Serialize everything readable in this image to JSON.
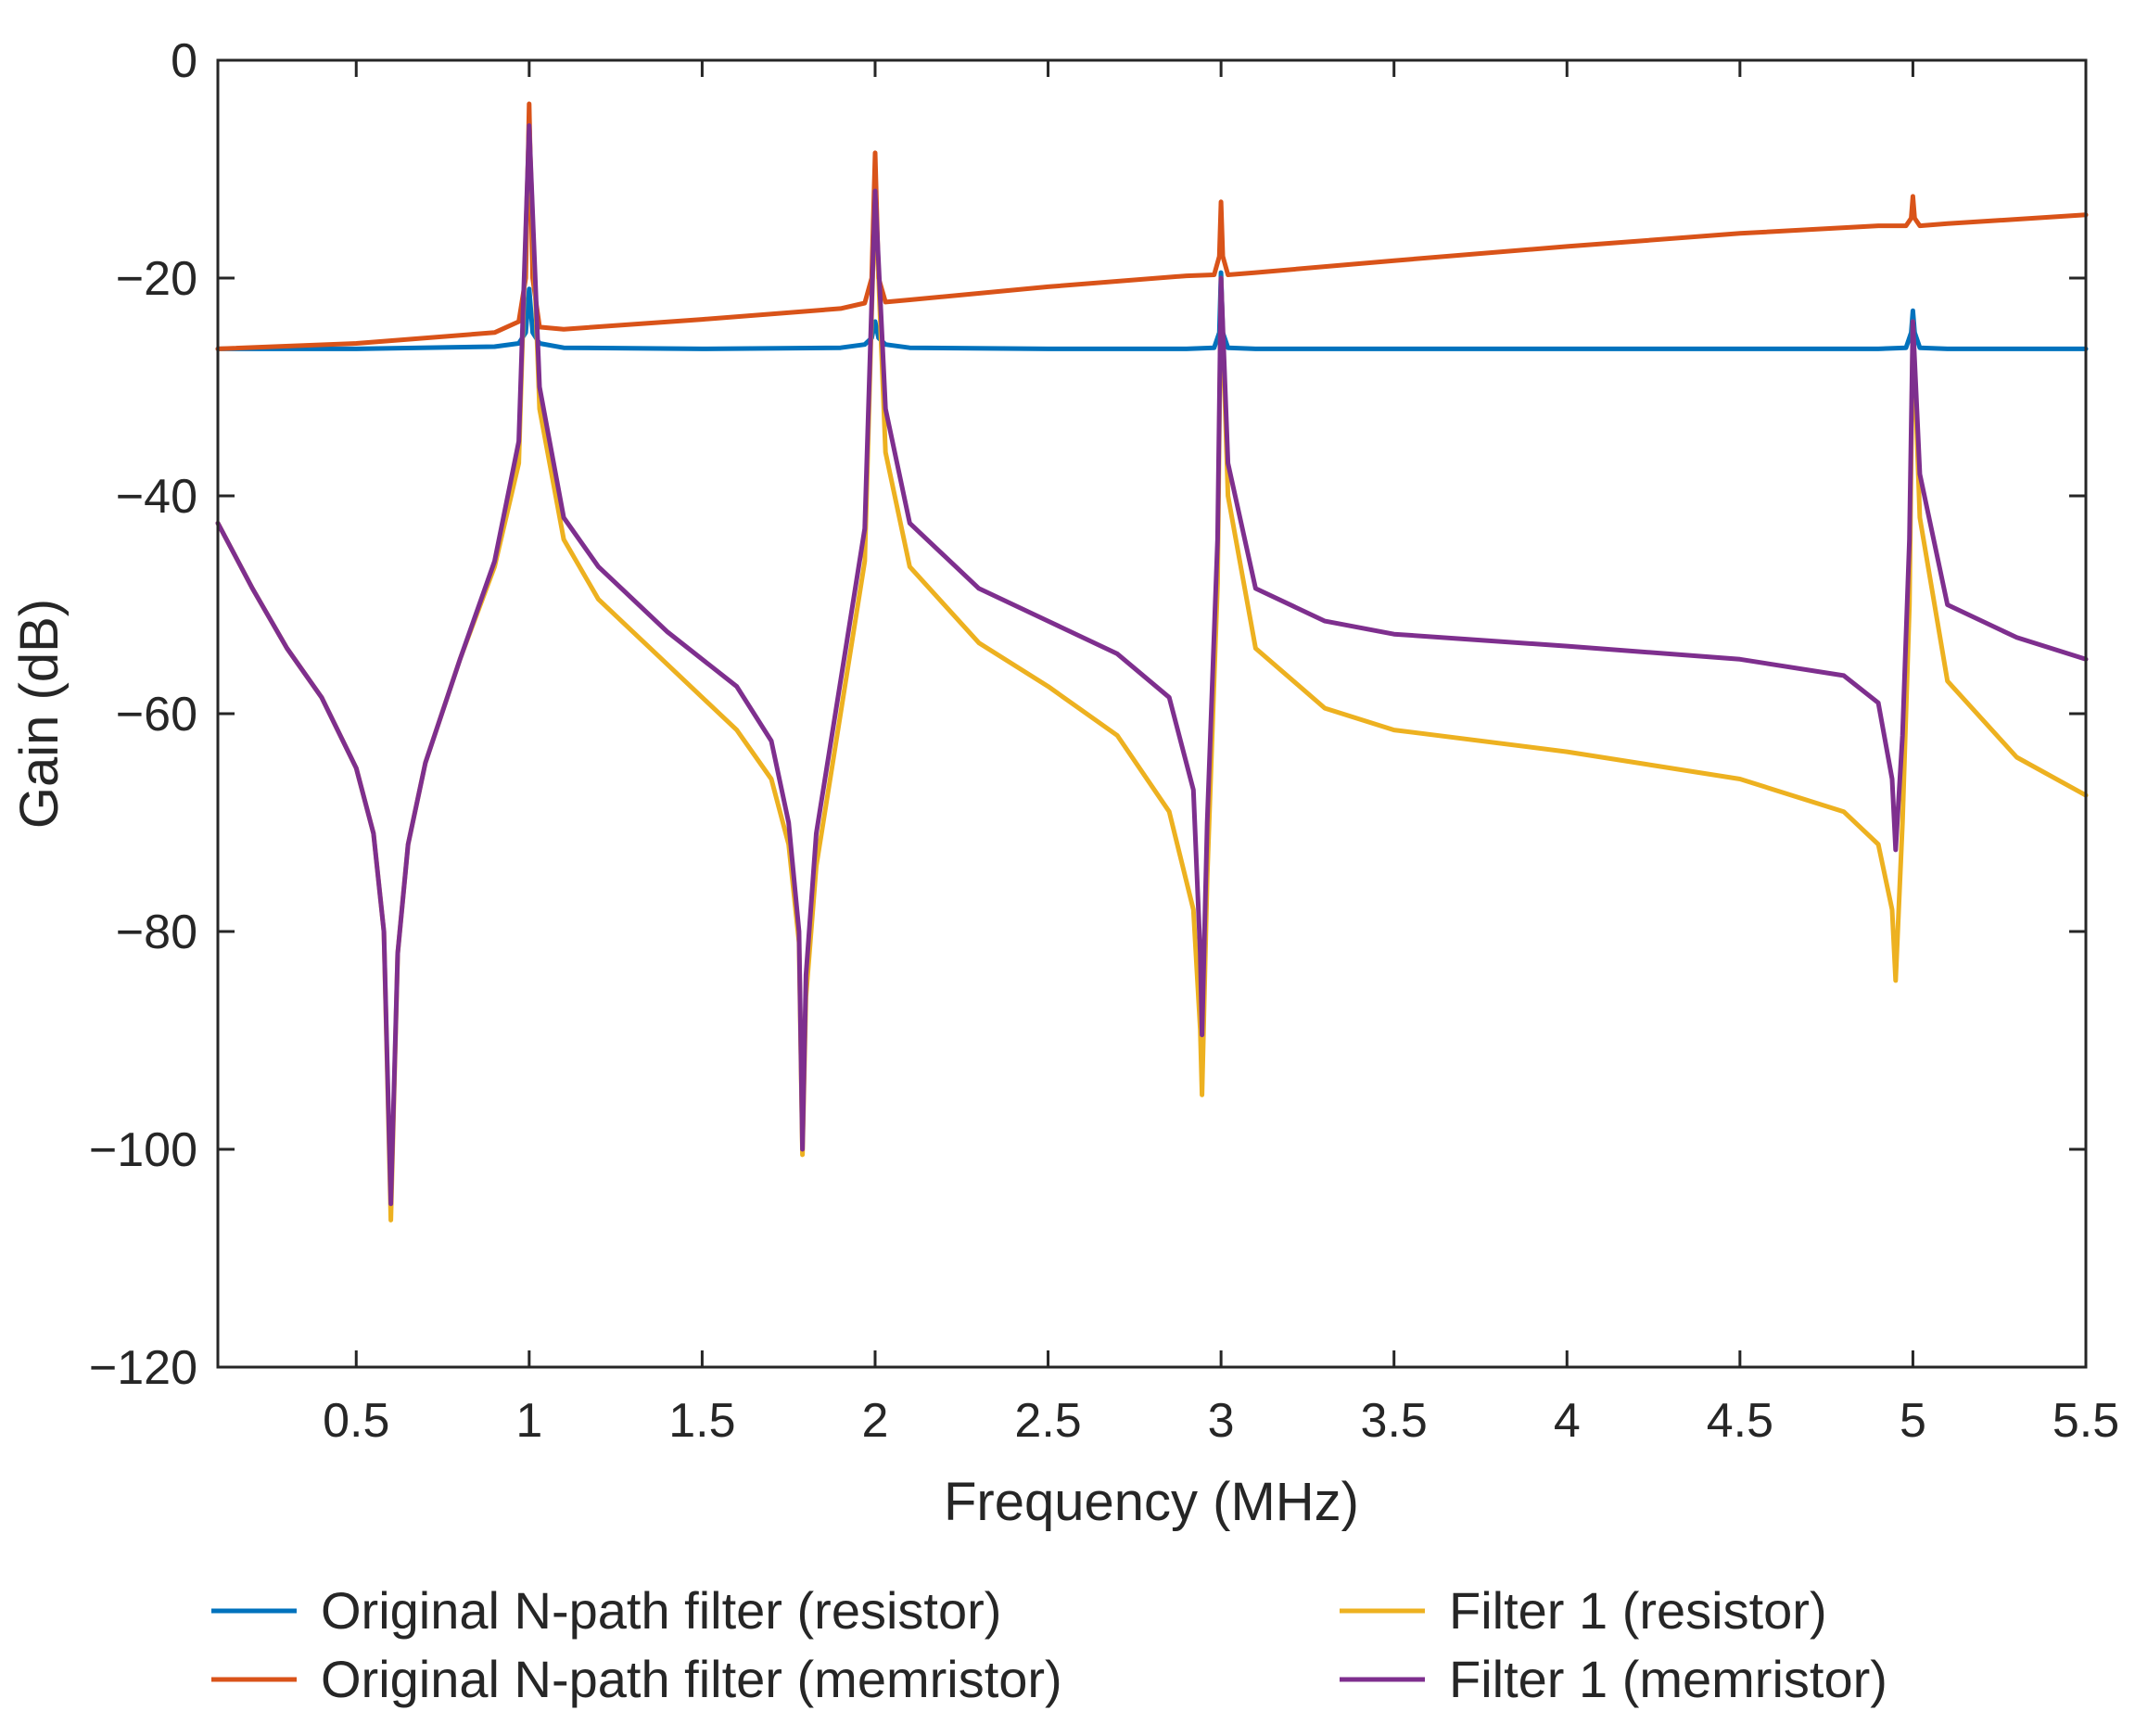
{
  "chart_data": {
    "type": "line",
    "title": "",
    "xlabel": "Frequency (MHz)",
    "ylabel": "Gain (dB)",
    "xlim": [
      0.1,
      5.5
    ],
    "ylim": [
      -120,
      0
    ],
    "xticks": [
      0.5,
      1,
      1.5,
      2,
      2.5,
      3,
      3.5,
      4,
      4.5,
      5,
      5.5
    ],
    "xtick_labels": [
      "0.5",
      "1",
      "1.5",
      "2",
      "2.5",
      "3",
      "3.5",
      "4",
      "4.5",
      "5",
      "5.5"
    ],
    "yticks": [
      0,
      -20,
      -40,
      -60,
      -80,
      -100,
      -120
    ],
    "ytick_labels": [
      "0",
      "−20",
      "−40",
      "−60",
      "−80",
      "−100",
      "−120"
    ],
    "grid": false,
    "legend_position": "bottom",
    "series": [
      {
        "name": "Original N-path filter (resistor)",
        "color": "#0072BD",
        "x": [
          0.1,
          0.5,
          0.9,
          0.97,
          0.99,
          1.0,
          1.01,
          1.03,
          1.1,
          1.5,
          1.9,
          1.97,
          1.99,
          2.0,
          2.01,
          2.03,
          2.1,
          2.5,
          2.9,
          2.98,
          2.995,
          3.0,
          3.005,
          3.02,
          3.1,
          3.5,
          4.0,
          4.5,
          4.9,
          4.98,
          4.995,
          5.0,
          5.005,
          5.02,
          5.1,
          5.5
        ],
        "values": [
          -26.5,
          -26.5,
          -26.3,
          -26.0,
          -25.0,
          -21.0,
          -25.0,
          -26.0,
          -26.4,
          -26.5,
          -26.4,
          -26.1,
          -25.5,
          -24.0,
          -25.5,
          -26.1,
          -26.4,
          -26.5,
          -26.5,
          -26.4,
          -25.0,
          -19.5,
          -25.0,
          -26.4,
          -26.5,
          -26.5,
          -26.5,
          -26.5,
          -26.5,
          -26.4,
          -25.0,
          -23.0,
          -25.0,
          -26.4,
          -26.5,
          -26.5
        ]
      },
      {
        "name": "Original N-path filter (memristor)",
        "color": "#D95319",
        "x": [
          0.1,
          0.5,
          0.9,
          0.97,
          0.99,
          1.0,
          1.01,
          1.03,
          1.1,
          1.5,
          1.9,
          1.97,
          1.99,
          2.0,
          2.01,
          2.03,
          2.1,
          2.5,
          2.9,
          2.98,
          2.995,
          3.0,
          3.005,
          3.02,
          3.1,
          3.5,
          4.0,
          4.5,
          4.9,
          4.98,
          4.995,
          5.0,
          5.005,
          5.02,
          5.1,
          5.5
        ],
        "values": [
          -26.5,
          -26.0,
          -25.0,
          -24.0,
          -20.0,
          -4.0,
          -20.0,
          -24.5,
          -24.7,
          -23.8,
          -22.8,
          -22.3,
          -20.0,
          -8.5,
          -20.0,
          -22.2,
          -22.0,
          -20.8,
          -19.8,
          -19.7,
          -18.0,
          -13.0,
          -18.0,
          -19.7,
          -19.5,
          -18.4,
          -17.1,
          -15.9,
          -15.2,
          -15.2,
          -14.5,
          -12.5,
          -14.5,
          -15.2,
          -15.0,
          -14.2
        ]
      },
      {
        "name": "Filter 1 (resistor)",
        "color": "#EDB120",
        "x": [
          0.1,
          0.2,
          0.3,
          0.4,
          0.5,
          0.55,
          0.58,
          0.6,
          0.62,
          0.65,
          0.7,
          0.8,
          0.9,
          0.97,
          1.0,
          1.03,
          1.1,
          1.2,
          1.4,
          1.6,
          1.7,
          1.75,
          1.78,
          1.79,
          1.8,
          1.83,
          1.9,
          1.97,
          2.0,
          2.03,
          2.1,
          2.3,
          2.5,
          2.7,
          2.85,
          2.92,
          2.94,
          2.945,
          2.96,
          2.99,
          3.0,
          3.02,
          3.1,
          3.3,
          3.5,
          4.0,
          4.5,
          4.8,
          4.9,
          4.94,
          4.95,
          4.97,
          4.99,
          5.0,
          5.02,
          5.1,
          5.3,
          5.5
        ],
        "values": [
          -42.5,
          -48.5,
          -54.0,
          -58.5,
          -65.0,
          -71.0,
          -80.0,
          -106.5,
          -82.0,
          -72.0,
          -64.5,
          -55.0,
          -46.5,
          -37.0,
          -6.0,
          -32.0,
          -44.0,
          -49.5,
          -55.5,
          -61.5,
          -66.0,
          -72.0,
          -81.0,
          -100.5,
          -86.0,
          -74.0,
          -60.0,
          -46.0,
          -12.0,
          -36.0,
          -46.5,
          -53.5,
          -57.5,
          -62.0,
          -69.0,
          -78.0,
          -89.0,
          -95.0,
          -75.0,
          -48.0,
          -20.0,
          -40.0,
          -54.0,
          -59.5,
          -61.5,
          -63.5,
          -66.0,
          -69.0,
          -72.0,
          -78.0,
          -84.5,
          -70.0,
          -50.0,
          -24.0,
          -42.0,
          -57.0,
          -64.0,
          -67.5
        ]
      },
      {
        "name": "Filter 1 (memristor)",
        "color": "#7E2F8E",
        "x": [
          0.1,
          0.2,
          0.3,
          0.4,
          0.5,
          0.55,
          0.58,
          0.6,
          0.62,
          0.65,
          0.7,
          0.8,
          0.9,
          0.97,
          1.0,
          1.03,
          1.1,
          1.2,
          1.4,
          1.6,
          1.7,
          1.75,
          1.78,
          1.79,
          1.8,
          1.83,
          1.9,
          1.97,
          2.0,
          2.03,
          2.1,
          2.3,
          2.5,
          2.7,
          2.85,
          2.92,
          2.94,
          2.945,
          2.96,
          2.99,
          3.0,
          3.02,
          3.1,
          3.3,
          3.5,
          4.0,
          4.5,
          4.8,
          4.9,
          4.94,
          4.95,
          4.97,
          4.99,
          5.0,
          5.02,
          5.1,
          5.3,
          5.5
        ],
        "values": [
          -42.5,
          -48.5,
          -54.0,
          -58.5,
          -65.0,
          -71.0,
          -80.0,
          -105.0,
          -82.0,
          -72.0,
          -64.5,
          -55.0,
          -46.0,
          -35.0,
          -6.0,
          -30.0,
          -42.0,
          -46.5,
          -52.5,
          -57.5,
          -62.5,
          -70.0,
          -80.0,
          -100.0,
          -84.0,
          -71.0,
          -57.0,
          -43.0,
          -12.0,
          -32.0,
          -42.5,
          -48.5,
          -51.5,
          -54.5,
          -58.5,
          -67.0,
          -82.0,
          -89.5,
          -70.0,
          -44.0,
          -20.0,
          -37.0,
          -48.5,
          -51.5,
          -52.7,
          -53.8,
          -55.0,
          -56.5,
          -59.0,
          -66.0,
          -72.5,
          -62.0,
          -44.0,
          -24.0,
          -38.0,
          -50.0,
          -53.0,
          -55.0
        ]
      }
    ]
  }
}
